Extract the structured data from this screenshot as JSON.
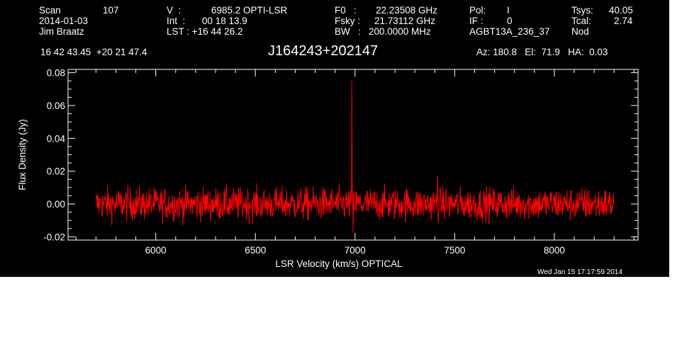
{
  "header": {
    "scan_label": "Scan",
    "scan_value": "107",
    "date": "2014-01-03",
    "observer": "Jim Braatz",
    "v_label": "V  :",
    "v_value": "6985.2 OPTI-LSR",
    "int_label": "Int  :",
    "int_value": "00 18 13.9",
    "lst_label": "LST : +16 44 26.2",
    "f0_label": "F0   :",
    "f0_value": "22.23508 GHz",
    "fsky_label": "Fsky :",
    "fsky_value": "21.73112 GHz",
    "bw_label": "BW   :",
    "bw_value": "200.0000 MHz",
    "pol_label": "Pol:",
    "pol_value": "I",
    "if_label": "IF :",
    "if_value": "0",
    "project": "AGBT13A_236_37",
    "tsys_label": "Tsys:",
    "tsys_value": "40.05",
    "tcal_label": "Tcal:",
    "tcal_value": "2.74",
    "procedure": "Nod",
    "coords": "16 42 43.45  +20 21 47.4",
    "source": "J164243+202147",
    "az_el_ha": "Az: 180.8   El:  71.9   HA:  0.03",
    "timestamp": "Wed Jan 15 17:17:59 2014"
  },
  "colors": {
    "background": "#000000",
    "axes": "#ffffff",
    "trace": "#ff0000"
  },
  "chart_data": {
    "type": "line",
    "title": "J164243+202147",
    "xlabel": "LSR Velocity (km/s) OPTICAL",
    "ylabel": "Flux Density (Jy)",
    "xlim": [
      5560,
      8420
    ],
    "ylim": [
      -0.022,
      0.082
    ],
    "xticks": [
      6000,
      6500,
      7000,
      7500,
      8000
    ],
    "xtick_labels": [
      "6000",
      "6500",
      "7000",
      "7500",
      "8000"
    ],
    "yticks": [
      -0.02,
      0.0,
      0.02,
      0.04,
      0.06,
      0.08
    ],
    "ytick_labels": [
      "-0.02",
      "0.00",
      "0.02",
      "0.04",
      "0.06",
      "0.08"
    ],
    "grid": false,
    "series": [
      {
        "x_range": [
          5700,
          8300
        ],
        "baseline": 0.0,
        "noise_rms": 0.005,
        "features": [
          {
            "x": 6985,
            "y": 0.075
          },
          {
            "x": 6990,
            "y": -0.017
          },
          {
            "x": 7415,
            "y": 0.017
          }
        ]
      }
    ]
  }
}
